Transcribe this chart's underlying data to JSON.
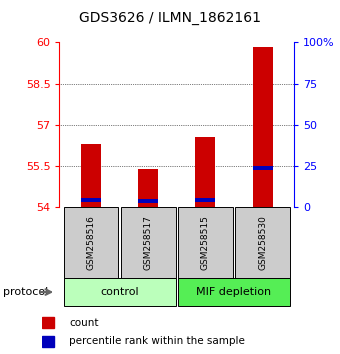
{
  "title": "GDS3626 / ILMN_1862161",
  "samples": [
    "GSM258516",
    "GSM258517",
    "GSM258515",
    "GSM258530"
  ],
  "groups": [
    {
      "label": "control",
      "samples": [
        0,
        1
      ],
      "color": "#bbffbb"
    },
    {
      "label": "MIF depletion",
      "samples": [
        2,
        3
      ],
      "color": "#55ee55"
    }
  ],
  "y_min": 54,
  "y_max": 60,
  "y_ticks_left": [
    54,
    55.5,
    57,
    58.5,
    60
  ],
  "y_ticks_right_vals": [
    0,
    25,
    50,
    75,
    100
  ],
  "y_ticks_right_labels": [
    "0",
    "25",
    "50",
    "75",
    "100%"
  ],
  "red_bar_tops": [
    56.3,
    55.4,
    56.55,
    59.85
  ],
  "blue_bar_bottoms": [
    54.17,
    54.15,
    54.17,
    55.35
  ],
  "blue_bar_tops": [
    54.32,
    54.3,
    54.32,
    55.5
  ],
  "bar_bottom": 54.0,
  "bar_width": 0.35,
  "red_color": "#cc0000",
  "blue_color": "#0000bb",
  "sample_box_color": "#cccccc",
  "protocol_label": "protocol",
  "legend_items": [
    {
      "color": "#cc0000",
      "label": "count"
    },
    {
      "color": "#0000bb",
      "label": "percentile rank within the sample"
    }
  ],
  "title_fontsize": 10,
  "tick_fontsize": 8,
  "label_fontsize": 8
}
